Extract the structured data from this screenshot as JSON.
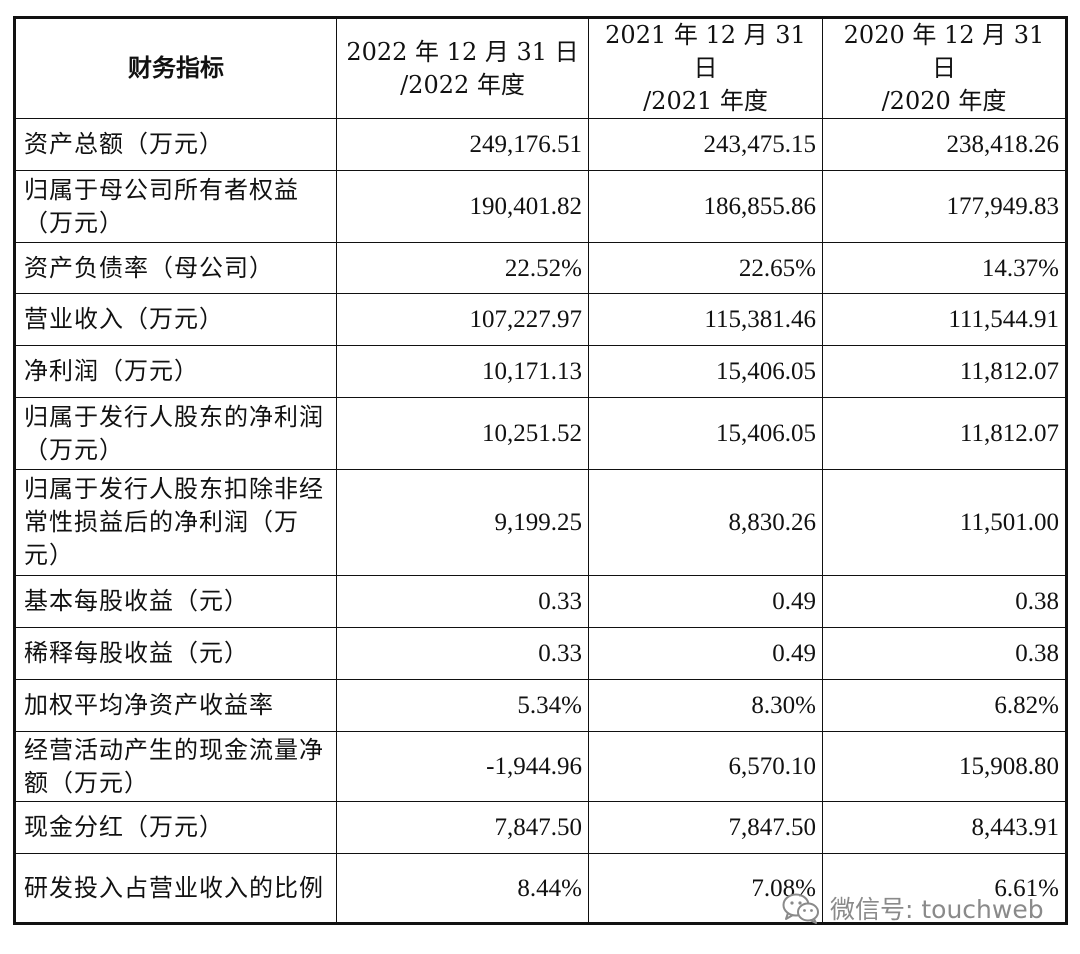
{
  "table": {
    "header": {
      "metric": "财务指标",
      "columns": [
        {
          "line1": "2022 年 12 月 31 日",
          "line2": "/2022 年度"
        },
        {
          "line1": "2021 年 12 月 31 日",
          "line2": "/2021 年度"
        },
        {
          "line1": "2020 年 12 月 31 日",
          "line2": "/2020 年度"
        }
      ]
    },
    "rows": [
      {
        "label": "资产总额（万元）",
        "values": [
          "249,176.51",
          "243,475.15",
          "238,418.26"
        ]
      },
      {
        "label": "归属于母公司所有者权益（万元）",
        "values": [
          "190,401.82",
          "186,855.86",
          "177,949.83"
        ]
      },
      {
        "label": "资产负债率（母公司）",
        "values": [
          "22.52%",
          "22.65%",
          "14.37%"
        ]
      },
      {
        "label": "营业收入（万元）",
        "values": [
          "107,227.97",
          "115,381.46",
          "111,544.91"
        ]
      },
      {
        "label": "净利润（万元）",
        "values": [
          "10,171.13",
          "15,406.05",
          "11,812.07"
        ]
      },
      {
        "label": "归属于发行人股东的净利润（万元）",
        "values": [
          "10,251.52",
          "15,406.05",
          "11,812.07"
        ]
      },
      {
        "label": "归属于发行人股东扣除非经常性损益后的净利润（万元）",
        "values": [
          "9,199.25",
          "8,830.26",
          "11,501.00"
        ]
      },
      {
        "label": "基本每股收益（元）",
        "values": [
          "0.33",
          "0.49",
          "0.38"
        ]
      },
      {
        "label": "稀释每股收益（元）",
        "values": [
          "0.33",
          "0.49",
          "0.38"
        ]
      },
      {
        "label": "加权平均净资产收益率",
        "values": [
          "5.34%",
          "8.30%",
          "6.82%"
        ]
      },
      {
        "label": "经营活动产生的现金流量净额（万元）",
        "values": [
          "-1,944.96",
          "6,570.10",
          "15,908.80"
        ]
      },
      {
        "label": "现金分红（万元）",
        "values": [
          "7,847.50",
          "7,847.50",
          "8,443.91"
        ]
      },
      {
        "label": "研发投入占营业收入的比例",
        "values": [
          "8.44%",
          "7.08%",
          "6.61%"
        ]
      }
    ]
  },
  "watermark": {
    "text": "微信号: touchweb",
    "icon": "wechat-icon"
  }
}
